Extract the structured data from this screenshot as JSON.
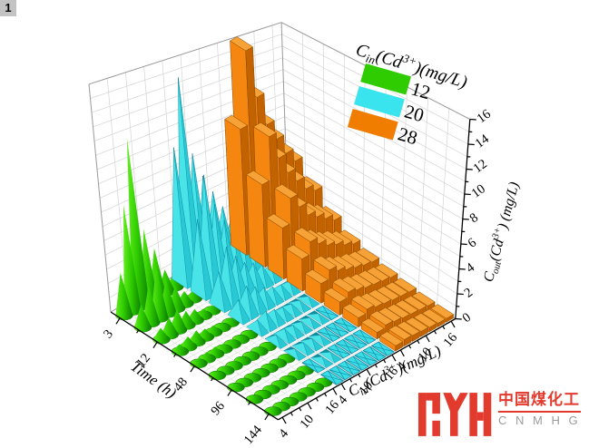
{
  "page": {
    "badge": "1",
    "background": "#ffffff"
  },
  "watermark": {
    "cn_text": "中国煤化工",
    "en_text": "CNMHG",
    "brand_color": "#e23b2e",
    "en_color": "#9b9b9b"
  },
  "chart_data": {
    "type": "bar",
    "variant": "3d-xyy-columns",
    "title": "",
    "grid": true,
    "x_axis": {
      "label": "C_{in}(Cd^{3+})(mg/L)",
      "values_per_series": [
        4,
        6,
        8,
        10,
        12,
        14,
        16
      ],
      "major_tick_labels": [
        "4",
        "10",
        "16"
      ],
      "note": "tick labels 4/10/16 repeat once per series band"
    },
    "y_axis": {
      "label": "Time (h)",
      "values": [
        3,
        6,
        12,
        24,
        48,
        72,
        96,
        120,
        144
      ],
      "major_tick_labels": [
        "3",
        "12",
        "48",
        "96",
        "144"
      ]
    },
    "z_axis": {
      "label": "C_{out}(Cd^{3+}) (mg/L)",
      "min": 0,
      "max": 16,
      "major_step": 2,
      "tick_labels": [
        "0",
        "2",
        "4",
        "6",
        "8",
        "10",
        "12",
        "14",
        "16"
      ]
    },
    "legend": {
      "title": "C_{in}(Cd^{3+})(mg/L)",
      "position": "top-right",
      "entries": [
        {
          "label": "12",
          "color": "#2ecc00",
          "glyph": "cone"
        },
        {
          "label": "20",
          "color": "#3ae4ee",
          "glyph": "pyramid"
        },
        {
          "label": "28",
          "color": "#f07d00",
          "glyph": "bar"
        }
      ]
    },
    "series": [
      {
        "name": "12",
        "glyph": "cone",
        "colors": {
          "light": "#63ee1e",
          "mid": "#2ecc00",
          "dark": "#0c7c00",
          "edge": "#0a6b00"
        },
        "values": [
          [
            3.0,
            7.5,
            12.0,
            5.2,
            3.5,
            1.6,
            1.0
          ],
          [
            1.6,
            2.6,
            3.6,
            2.4,
            1.6,
            0.9,
            0.6
          ],
          [
            0.8,
            1.2,
            1.5,
            1.0,
            0.8,
            0.5,
            0.4
          ],
          [
            0.5,
            0.7,
            0.8,
            0.6,
            0.5,
            0.35,
            0.3
          ],
          [
            0.35,
            0.45,
            0.5,
            0.4,
            0.35,
            0.25,
            0.2
          ],
          [
            0.25,
            0.3,
            0.35,
            0.3,
            0.25,
            0.2,
            0.15
          ],
          [
            0.2,
            0.25,
            0.25,
            0.2,
            0.2,
            0.15,
            0.12
          ],
          [
            0.15,
            0.2,
            0.2,
            0.15,
            0.15,
            0.12,
            0.1
          ],
          [
            0.12,
            0.15,
            0.15,
            0.12,
            0.1,
            0.1,
            0.1
          ]
        ]
      },
      {
        "name": "20",
        "glyph": "pyramid",
        "colors": {
          "left": "#49e4e8",
          "front": "#28c9d4",
          "back": "#0f8f9e",
          "flat": "#3adde6",
          "edge": "#0c86a0"
        },
        "values": [
          [
            10,
            15,
            9,
            7,
            5.5,
            4,
            3
          ],
          [
            5.5,
            8.5,
            6,
            4.5,
            3.5,
            2.5,
            2
          ],
          [
            2.5,
            4,
            3,
            2.2,
            1.8,
            1.3,
            1
          ],
          [
            1.3,
            2,
            1.6,
            1.2,
            0.9,
            0.7,
            0.6
          ],
          [
            0.7,
            1,
            0.8,
            0.6,
            0.5,
            0.4,
            0.35
          ],
          [
            0.5,
            0.6,
            0.5,
            0.4,
            0.35,
            0.3,
            0.25
          ],
          [
            0.35,
            0.45,
            0.4,
            0.3,
            0.25,
            0.2,
            0.2
          ],
          [
            0.25,
            0.3,
            0.28,
            0.22,
            0.2,
            0.15,
            0.15
          ],
          [
            0.2,
            0.25,
            0.2,
            0.18,
            0.15,
            0.12,
            0.1
          ]
        ]
      },
      {
        "name": "28",
        "glyph": "bar",
        "colors": {
          "left": "#f5860f",
          "right": "#c36300",
          "top": "#f7a236",
          "edge": "#8a4a00"
        },
        "values": [
          [
            10,
            16,
            12,
            9.5,
            8,
            6.5,
            5.5
          ],
          [
            6.5,
            10,
            8,
            6.5,
            5.5,
            4.5,
            4
          ],
          [
            4,
            6,
            5,
            4,
            3.5,
            3,
            2.5
          ],
          [
            2.5,
            3.5,
            3,
            2.5,
            2.2,
            1.8,
            1.5
          ],
          [
            1.5,
            2.2,
            1.8,
            1.5,
            1.3,
            1.1,
            1
          ],
          [
            1,
            1.4,
            1.2,
            1,
            0.9,
            0.8,
            0.7
          ],
          [
            0.7,
            1,
            0.8,
            0.7,
            0.6,
            0.55,
            0.5
          ],
          [
            0.5,
            0.7,
            0.6,
            0.5,
            0.45,
            0.4,
            0.35
          ],
          [
            0.4,
            0.5,
            0.45,
            0.4,
            0.35,
            0.3,
            0.3
          ]
        ]
      }
    ]
  }
}
